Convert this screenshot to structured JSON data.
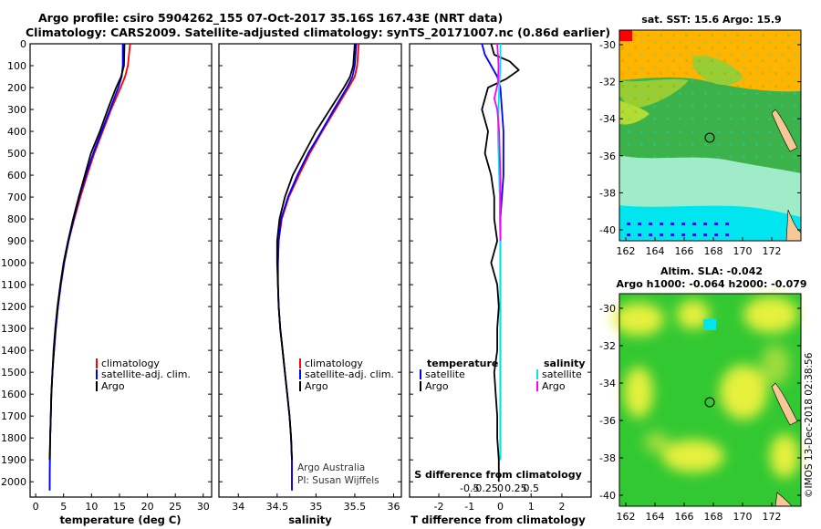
{
  "header": {
    "title_line1": "Argo profile: csiro 5904262_155 07-Oct-2017 35.16S 167.43E (NRT data)",
    "title_line2": "Climatology: CARS2009. Satellite-adjusted climatology: synTS_20171007.nc (0.86d earlier)"
  },
  "colors": {
    "climatology": "#ff0000",
    "satellite": "#0000ff",
    "argo": "#000000",
    "sal_satellite": "#00e5ee",
    "sal_argo": "#ff00ff"
  },
  "chart_data": [
    {
      "type": "line",
      "title": "",
      "xlabel": "temperature (deg C)",
      "ylabel": "",
      "xlim": [
        -1,
        31.5
      ],
      "ylim": [
        2070,
        0
      ],
      "xticks": [
        0,
        5,
        10,
        15,
        20,
        25,
        30
      ],
      "yticks": [
        0,
        100,
        200,
        300,
        400,
        500,
        600,
        700,
        800,
        900,
        1000,
        1100,
        1200,
        1300,
        1400,
        1500,
        1600,
        1700,
        1800,
        1900,
        2000
      ],
      "legend": [
        "climatology",
        "satellite-adj. clim.",
        "Argo"
      ],
      "series": [
        {
          "name": "climatology",
          "color": "#ff0000",
          "x": [
            16.9,
            16.5,
            16.0,
            15.2,
            13.5,
            12.0,
            10.5,
            9.2,
            8.0,
            6.9,
            5.9,
            5.1,
            4.5,
            4.0,
            3.6,
            3.3,
            3.0,
            2.8,
            2.7,
            2.6,
            2.55,
            2.5
          ],
          "y": [
            0,
            100,
            150,
            200,
            300,
            400,
            500,
            600,
            700,
            800,
            900,
            1000,
            1100,
            1200,
            1300,
            1400,
            1500,
            1600,
            1700,
            1800,
            1900,
            2040
          ]
        },
        {
          "name": "satellite-adj. clim.",
          "color": "#0000ff",
          "x": [
            15.6,
            15.6,
            15.4,
            14.8,
            13.3,
            11.8,
            10.3,
            9.0,
            7.8,
            6.8,
            5.9,
            5.1,
            4.5,
            4.0,
            3.6,
            3.3,
            3.0,
            2.8,
            2.7,
            2.6,
            2.55,
            2.5
          ],
          "y": [
            0,
            100,
            150,
            200,
            300,
            400,
            500,
            600,
            700,
            800,
            900,
            1000,
            1100,
            1200,
            1300,
            1400,
            1500,
            1600,
            1700,
            1800,
            1900,
            2040
          ]
        },
        {
          "name": "Argo",
          "color": "#000000",
          "x": [
            15.9,
            15.8,
            15.3,
            14.4,
            12.9,
            11.5,
            9.9,
            8.8,
            7.7,
            6.7,
            5.8,
            5.0,
            4.4,
            3.9,
            3.5,
            3.2,
            3.0,
            2.8,
            2.7,
            2.6,
            2.5
          ],
          "y": [
            0,
            100,
            150,
            200,
            300,
            400,
            500,
            600,
            700,
            800,
            900,
            1000,
            1100,
            1200,
            1300,
            1400,
            1500,
            1600,
            1700,
            1800,
            1900
          ]
        }
      ]
    },
    {
      "type": "line",
      "title": "",
      "xlabel": "salinity",
      "ylabel": "",
      "xlim": [
        33.75,
        36.1
      ],
      "ylim": [
        2070,
        0
      ],
      "xticks": [
        34,
        34.5,
        35,
        35.5,
        36
      ],
      "xticklabels": [
        "34",
        "34.5",
        "35",
        "35.5",
        "36"
      ],
      "legend": [
        "climatology",
        "satellite-adj. clim.",
        "Argo"
      ],
      "annotations": [
        "Argo Australia",
        "PI: Susan Wijffels"
      ],
      "series": [
        {
          "name": "climatology",
          "color": "#ff0000",
          "x": [
            35.55,
            35.53,
            35.5,
            35.42,
            35.25,
            35.08,
            34.92,
            34.78,
            34.65,
            34.56,
            34.52,
            34.51,
            34.51,
            34.52,
            34.54,
            34.57,
            34.6,
            34.63,
            34.66,
            34.68,
            34.69,
            34.69
          ],
          "y": [
            0,
            100,
            150,
            200,
            300,
            400,
            500,
            600,
            700,
            800,
            900,
            1000,
            1100,
            1200,
            1300,
            1400,
            1500,
            1600,
            1700,
            1800,
            1900,
            2040
          ]
        },
        {
          "name": "satellite-adj. clim.",
          "color": "#0000ff",
          "x": [
            35.52,
            35.5,
            35.47,
            35.4,
            35.23,
            35.07,
            34.9,
            34.76,
            34.64,
            34.55,
            34.52,
            34.51,
            34.51,
            34.52,
            34.54,
            34.57,
            34.6,
            34.63,
            34.66,
            34.68,
            34.69,
            34.69
          ],
          "y": [
            0,
            100,
            150,
            200,
            300,
            400,
            500,
            600,
            700,
            800,
            900,
            1000,
            1100,
            1200,
            1300,
            1400,
            1500,
            1600,
            1700,
            1800,
            1900,
            2040
          ]
        },
        {
          "name": "Argo",
          "color": "#000000",
          "x": [
            35.5,
            35.48,
            35.44,
            35.36,
            35.18,
            35.0,
            34.85,
            34.7,
            34.6,
            34.53,
            34.5,
            34.5,
            34.51,
            34.52,
            34.54,
            34.57,
            34.6,
            34.63,
            34.66,
            34.68,
            34.69
          ],
          "y": [
            0,
            100,
            150,
            200,
            300,
            400,
            500,
            600,
            700,
            800,
            900,
            1000,
            1100,
            1200,
            1300,
            1400,
            1500,
            1600,
            1700,
            1800,
            1900
          ]
        }
      ]
    },
    {
      "type": "line",
      "title": "S difference from climatology",
      "xlabel": "T difference from climatology",
      "ylabel": "",
      "xlim": [
        -2.95,
        2.95
      ],
      "ylim": [
        2070,
        0
      ],
      "xticks": [
        -2,
        -1,
        0,
        1,
        2
      ],
      "s_xticks": [
        -0.5,
        -0.25,
        0,
        0.25,
        0.5
      ],
      "s_xticklabels": [
        "-0.5",
        "-0.25",
        "0",
        "0.25",
        "0.5"
      ],
      "s_scale": 2,
      "legend_temperature": [
        "temperature",
        "satellite",
        "Argo"
      ],
      "legend_salinity": [
        "salinity",
        "satellite",
        "Argo"
      ],
      "series": [
        {
          "name": "temperature satellite",
          "color": "#0000ff",
          "units": "T",
          "x": [
            -0.6,
            -0.5,
            -0.3,
            -0.1,
            0.0,
            0.05,
            0.1,
            0.1,
            0.1,
            0.05,
            0.0,
            0.0,
            0.0,
            0.0,
            0.0,
            0.0,
            0.0,
            0.0,
            0.0,
            0.0,
            0.0
          ],
          "y": [
            0,
            50,
            100,
            150,
            200,
            300,
            400,
            500,
            600,
            700,
            800,
            900,
            1000,
            1100,
            1200,
            1300,
            1400,
            1500,
            1600,
            1700,
            1900
          ]
        },
        {
          "name": "temperature Argo",
          "color": "#000000",
          "units": "T",
          "x": [
            -0.3,
            -0.2,
            0.3,
            0.6,
            0.2,
            -0.4,
            -0.6,
            -0.4,
            -0.5,
            -0.3,
            -0.2,
            -0.2,
            -0.1,
            -0.3,
            -0.1,
            -0.05,
            -0.1,
            -0.1,
            -0.2,
            -0.15,
            -0.1,
            -0.1,
            -0.05,
            -0.05
          ],
          "y": [
            0,
            50,
            80,
            120,
            160,
            200,
            300,
            400,
            500,
            600,
            700,
            800,
            900,
            1000,
            1100,
            1200,
            1300,
            1400,
            1500,
            1600,
            1700,
            1800,
            1900,
            2000
          ]
        },
        {
          "name": "salinity satellite",
          "color": "#00e5ee",
          "units": "S",
          "x": [
            0.0,
            0.0,
            -0.02,
            -0.03,
            -0.04,
            -0.03,
            -0.02,
            -0.01,
            -0.01,
            0.0,
            0.0,
            0.0,
            0.0,
            0.0,
            0.0,
            0.0,
            0.0,
            0.0,
            0.0,
            0.0
          ],
          "y": [
            0,
            100,
            200,
            300,
            400,
            500,
            600,
            700,
            800,
            900,
            1000,
            1100,
            1200,
            1300,
            1400,
            1500,
            1600,
            1700,
            1800,
            1900
          ]
        },
        {
          "name": "salinity Argo",
          "color": "#ff00ff",
          "units": "S",
          "x": [
            -0.05,
            -0.03,
            -0.04,
            -0.1,
            -0.05,
            -0.02,
            -0.01,
            0.0,
            0.0,
            0.0,
            0.0
          ],
          "y": [
            0,
            100,
            180,
            250,
            300,
            400,
            500,
            600,
            700,
            800,
            900
          ]
        }
      ]
    }
  ],
  "maps": {
    "sst": {
      "title": "sat. SST: 15.6 Argo: 15.9",
      "yticks": [
        "-30",
        "-32",
        "-34",
        "-36",
        "-38",
        "-40"
      ],
      "xticks": [
        "162",
        "164",
        "166",
        "168",
        "170",
        "172"
      ]
    },
    "sla": {
      "title1": "Altim. SLA: -0.042",
      "title2": "Argo h1000: -0.064 h2000: -0.079",
      "yticks": [
        "-30",
        "-32",
        "-34",
        "-36",
        "-38",
        "-40"
      ],
      "xticks": [
        "162",
        "164",
        "166",
        "168",
        "170",
        "172"
      ]
    },
    "copyright": "©IMOS 13-Dec-2018 02:38:56"
  }
}
